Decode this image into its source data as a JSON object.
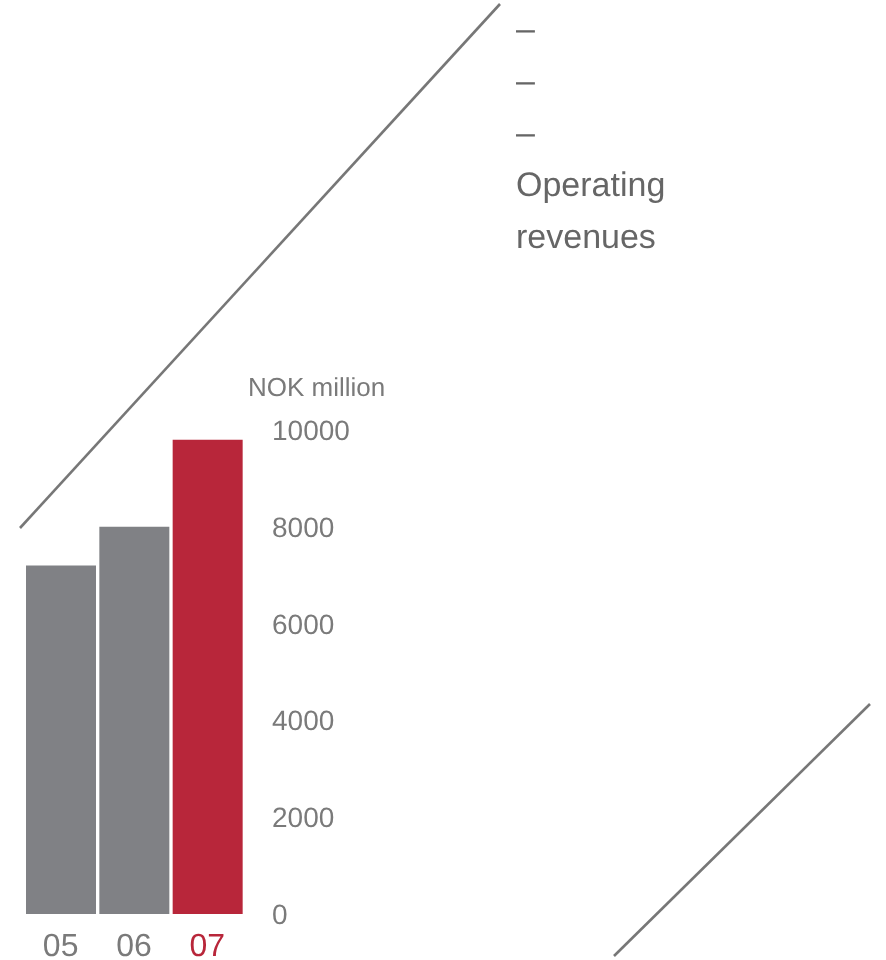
{
  "chart_data": {
    "type": "bar",
    "title": "Operating revenues",
    "ylabel": "NOK million",
    "annotations": [
      "–",
      "–",
      "–"
    ],
    "categories": [
      "05",
      "06",
      "07"
    ],
    "values": [
      7200,
      8000,
      9800
    ],
    "colors": [
      "#808185",
      "#808185",
      "#b8263a"
    ],
    "ylim": [
      0,
      10000
    ],
    "yticks": [
      0,
      2000,
      4000,
      6000,
      8000,
      10000
    ],
    "grid": false,
    "legend": false
  }
}
